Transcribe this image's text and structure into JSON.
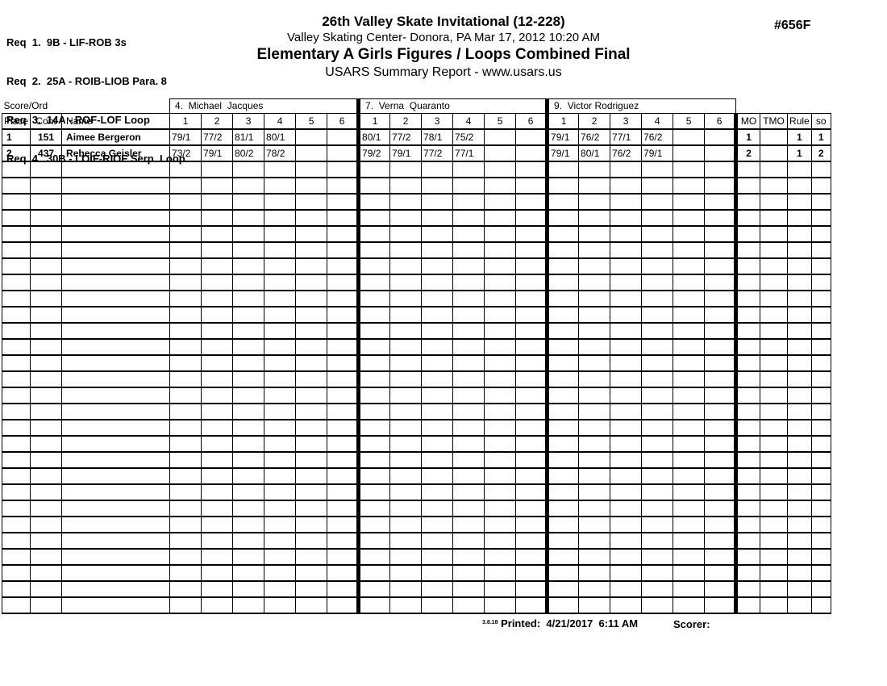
{
  "page": {
    "code": "#656F",
    "requirements": [
      "Req  1.  9B - LIF-ROB 3s",
      "Req  2.  25A - ROIB-LIOB Para. 8",
      "Req  3.  14A - ROF-LOF Loop",
      "Req  4.  30B - LOIF-RIOF Serp. Loop"
    ],
    "title": "26th Valley Skate Invitational (12-228)",
    "venue_line": "Valley Skating Center-  Donora, PA   Mar 17, 2012   10:20 AM",
    "event_title": "Elementary A Girls Figures / Loops Combined Final",
    "report_line": "USARS Summary Report - www.usars.us"
  },
  "table": {
    "corner_label": "Score/Ord",
    "judges": [
      "4.  Michael  Jacques",
      "7.  Verna  Quaranto",
      "9.  Victor Rodriguez"
    ],
    "left_headers": [
      "Place",
      "Cont",
      "Name"
    ],
    "score_col_headers": [
      "1",
      "2",
      "3",
      "4",
      "5",
      "6"
    ],
    "right_headers": [
      "MO",
      "TMO",
      "Rule",
      "so"
    ],
    "rows": [
      {
        "place": "1",
        "cont": "151",
        "name": "Aimee Bergeron",
        "scores": [
          [
            "79/1",
            "77/2",
            "81/1",
            "80/1",
            "",
            ""
          ],
          [
            "80/1",
            "77/2",
            "78/1",
            "75/2",
            "",
            ""
          ],
          [
            "79/1",
            "76/2",
            "77/1",
            "76/2",
            "",
            ""
          ]
        ],
        "mo": "1",
        "tmo": "",
        "rule": "1",
        "so": "1"
      },
      {
        "place": "2",
        "cont": "437",
        "name": "Rebecca Geisler",
        "scores": [
          [
            "73/2",
            "79/1",
            "80/2",
            "78/2",
            "",
            ""
          ],
          [
            "79/2",
            "79/1",
            "77/2",
            "77/1",
            "",
            ""
          ],
          [
            "79/1",
            "80/1",
            "76/2",
            "79/1",
            "",
            ""
          ]
        ],
        "mo": "2",
        "tmo": "",
        "rule": "1",
        "so": "2"
      }
    ],
    "empty_row_count": 28
  },
  "footer": {
    "version": "3.8.18",
    "printed_label": "Printed:  4/21/2017  6:11 AM",
    "scorer_label": "Scorer:"
  }
}
